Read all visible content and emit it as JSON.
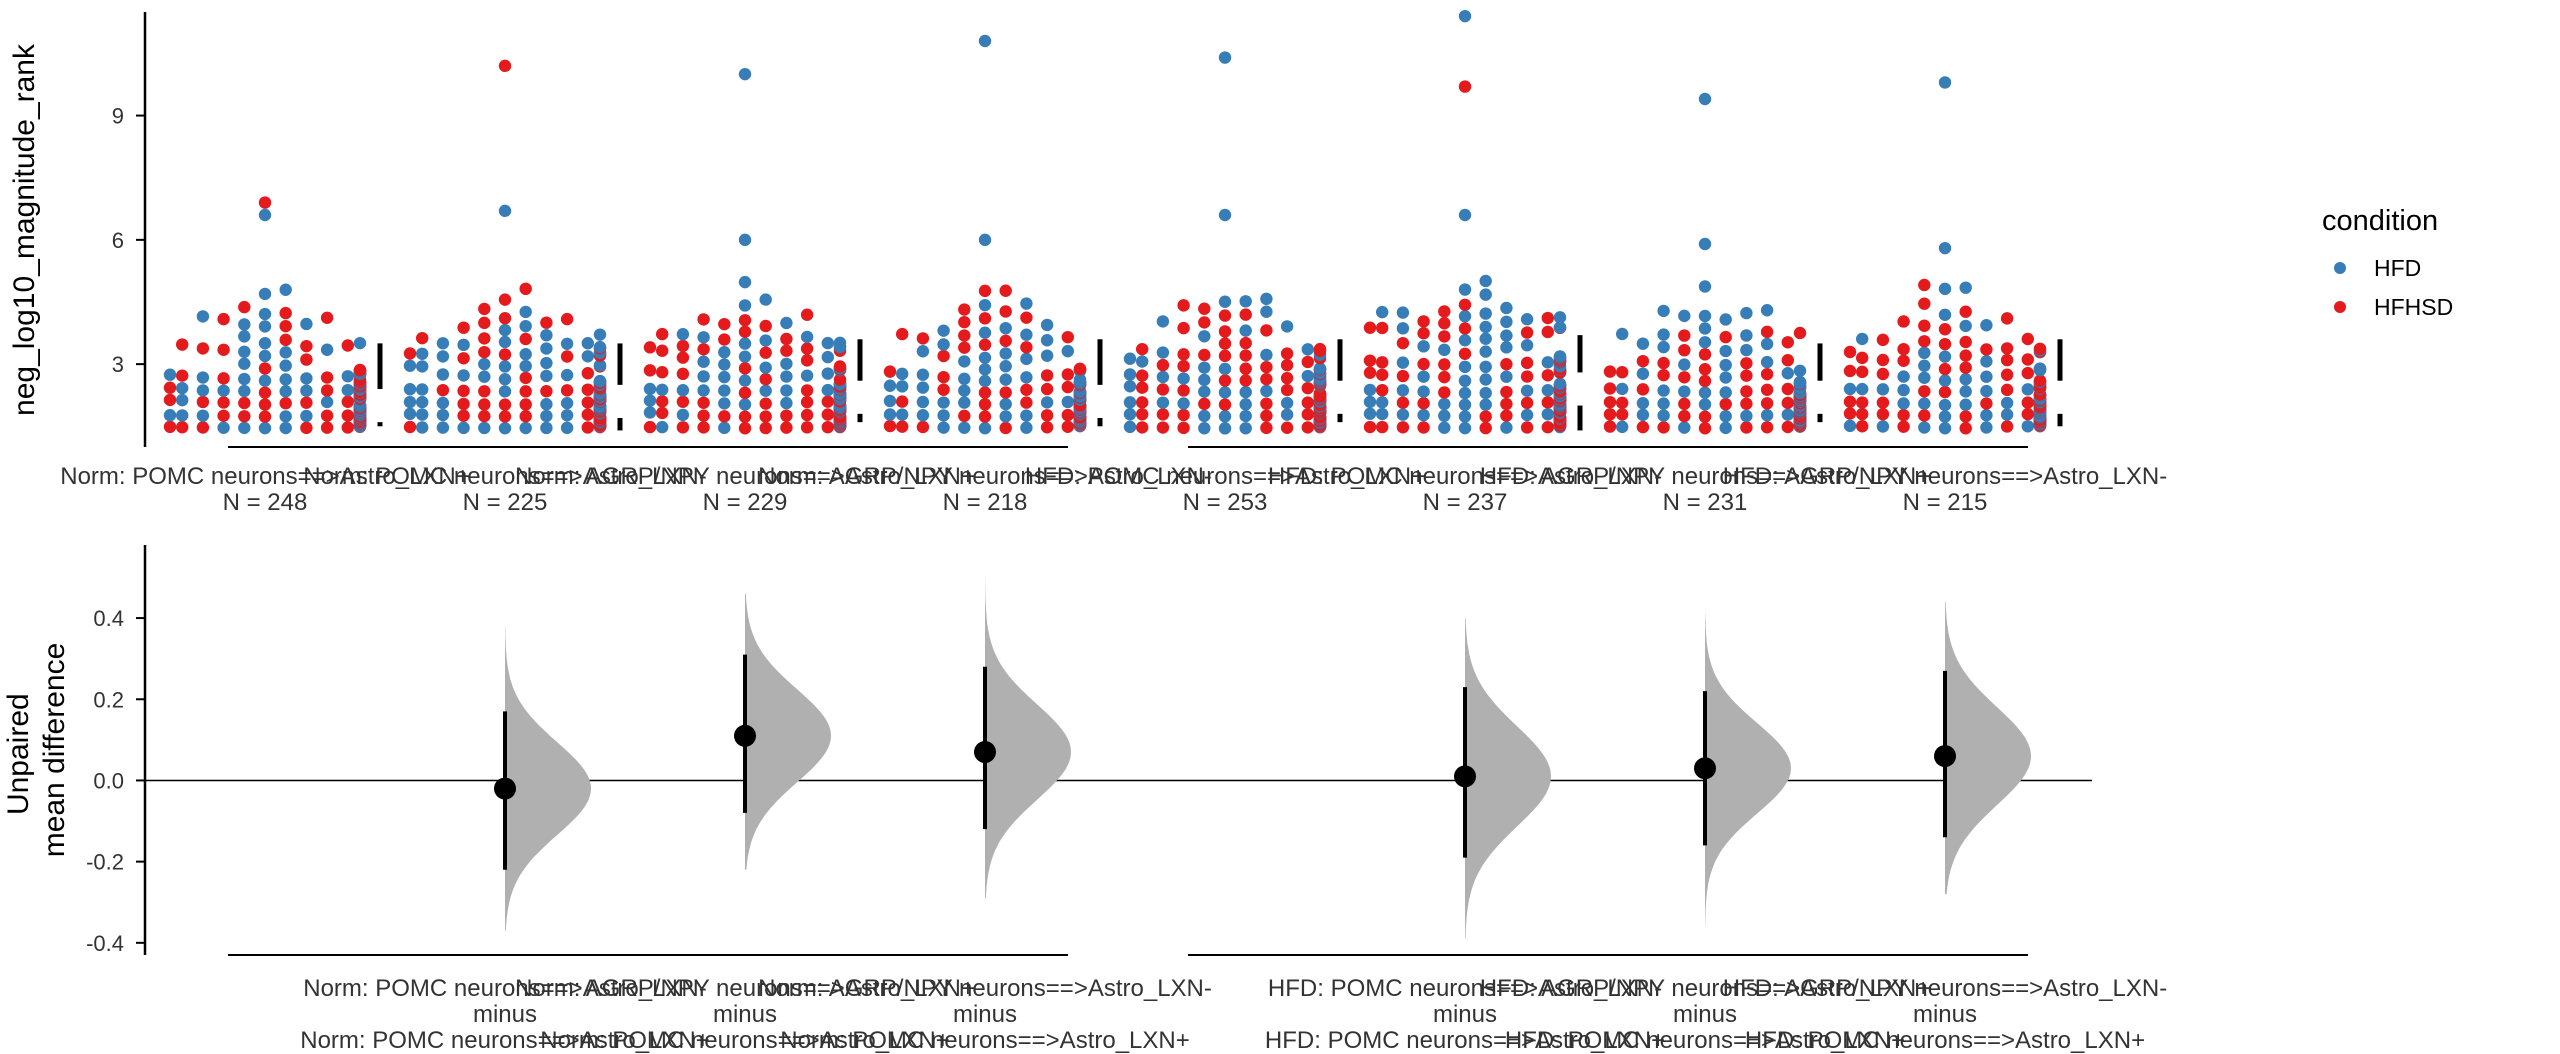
{
  "chart_data": [
    {
      "type": "scatter",
      "subtype": "swarm",
      "ylabel": "neg_log10_magnitude_rank",
      "yticks": [
        3,
        6,
        9
      ],
      "ylim": [
        1.0,
        11.5
      ],
      "legend": {
        "title": "condition",
        "position": "right",
        "entries": [
          {
            "name": "HFD",
            "color": "#377eb8"
          },
          {
            "name": "HFHSD",
            "color": "#e41a1c"
          }
        ]
      },
      "groups": [
        {
          "label": "Norm: POMC neurons==>Astro_LXN+",
          "n_text": "N = 248",
          "outliers": [
            {
              "y": 6.9,
              "condition": "HFHSD"
            },
            {
              "y": 6.6,
              "condition": "HFD"
            }
          ]
        },
        {
          "label": "Norm: POMC neurons==>Astro_LXN-",
          "n_text": "N = 225",
          "outliers": [
            {
              "y": 10.2,
              "condition": "HFHSD"
            },
            {
              "y": 6.7,
              "condition": "HFD"
            }
          ]
        },
        {
          "label": "Norm: AGRP/NPY neurons==>Astro_LXN+",
          "n_text": "N = 229",
          "outliers": [
            {
              "y": 10.0,
              "condition": "HFD"
            },
            {
              "y": 6.0,
              "condition": "HFD"
            }
          ]
        },
        {
          "label": "Norm: AGRP/NPY neurons==>Astro_LXN-",
          "n_text": "N = 218",
          "outliers": [
            {
              "y": 10.8,
              "condition": "HFD"
            },
            {
              "y": 6.0,
              "condition": "HFD"
            }
          ]
        },
        {
          "label": "HFD: POMC neurons==>Astro_LXN+",
          "n_text": "N = 253",
          "outliers": [
            {
              "y": 10.4,
              "condition": "HFD"
            },
            {
              "y": 6.6,
              "condition": "HFD"
            }
          ]
        },
        {
          "label": "HFD: POMC neurons==>Astro_LXN-",
          "n_text": "N = 237",
          "outliers": [
            {
              "y": 11.4,
              "condition": "HFD"
            },
            {
              "y": 9.7,
              "condition": "HFHSD"
            },
            {
              "y": 6.6,
              "condition": "HFD"
            }
          ]
        },
        {
          "label": "HFD: AGRP/NPY neurons==>Astro_LXN+",
          "n_text": "N = 231",
          "outliers": [
            {
              "y": 9.4,
              "condition": "HFD"
            },
            {
              "y": 5.9,
              "condition": "HFD"
            }
          ]
        },
        {
          "label": "HFD: AGRP/NPY neurons==>Astro_LXN-",
          "n_text": "N = 215",
          "outliers": [
            {
              "y": 9.8,
              "condition": "HFD"
            },
            {
              "y": 5.8,
              "condition": "HFD"
            }
          ]
        }
      ],
      "gap_bars": [
        {
          "gap": [
            1.6,
            2.4
          ],
          "bar_top": 3.5,
          "bar_bottom": 1.5
        },
        {
          "gap": [
            1.7,
            2.5
          ],
          "bar_top": 3.5,
          "bar_bottom": 1.4
        },
        {
          "gap": [
            1.8,
            2.6
          ],
          "bar_top": 3.6,
          "bar_bottom": 1.6
        },
        {
          "gap": [
            1.7,
            2.5
          ],
          "bar_top": 3.6,
          "bar_bottom": 1.5
        },
        {
          "gap": [
            1.8,
            2.6
          ],
          "bar_top": 3.6,
          "bar_bottom": 1.6
        },
        {
          "gap": [
            2.0,
            2.8
          ],
          "bar_top": 3.7,
          "bar_bottom": 1.4
        },
        {
          "gap": [
            1.8,
            2.6
          ],
          "bar_top": 3.5,
          "bar_bottom": 1.6
        },
        {
          "gap": [
            1.8,
            2.6
          ],
          "bar_top": 3.6,
          "bar_bottom": 1.5
        }
      ]
    },
    {
      "type": "estimation",
      "ylabel": "Unpaired\nmean difference",
      "yticks": [
        -0.4,
        -0.2,
        0.0,
        0.2,
        0.4
      ],
      "ylim": [
        -0.43,
        0.58
      ],
      "zero_line": true,
      "comparisons": [
        {
          "test": "Norm: POMC neurons==>Astro_LXN-",
          "control": "Norm: POMC neurons==>Astro_LXN+",
          "mean_diff": -0.02,
          "ci": [
            -0.22,
            0.17
          ],
          "dist_min": -0.37,
          "dist_max": 0.38,
          "x_slot": 1
        },
        {
          "test": "Norm: AGRP/NPY neurons==>Astro_LXN+",
          "control": "Norm: POMC neurons==>Astro_LXN+",
          "mean_diff": 0.11,
          "ci": [
            -0.08,
            0.31
          ],
          "dist_min": -0.22,
          "dist_max": 0.46,
          "x_slot": 2
        },
        {
          "test": "Norm: AGRP/NPY neurons==>Astro_LXN-",
          "control": "Norm: POMC neurons==>Astro_LXN+",
          "mean_diff": 0.07,
          "ci": [
            -0.12,
            0.28
          ],
          "dist_min": -0.29,
          "dist_max": 0.5,
          "x_slot": 3
        },
        {
          "test": "HFD: POMC neurons==>Astro_LXN-",
          "control": "HFD: POMC neurons==>Astro_LXN+",
          "mean_diff": 0.01,
          "ci": [
            -0.19,
            0.23
          ],
          "dist_min": -0.39,
          "dist_max": 0.4,
          "x_slot": 5
        },
        {
          "test": "HFD: AGRP/NPY neurons==>Astro_LXN+",
          "control": "HFD: POMC neurons==>Astro_LXN+",
          "mean_diff": 0.03,
          "ci": [
            -0.16,
            0.22
          ],
          "dist_min": -0.36,
          "dist_max": 0.41,
          "x_slot": 6
        },
        {
          "test": "HFD: AGRP/NPY neurons==>Astro_LXN-",
          "control": "HFD: POMC neurons==>Astro_LXN+",
          "mean_diff": 0.06,
          "ci": [
            -0.14,
            0.27
          ],
          "dist_min": -0.28,
          "dist_max": 0.44,
          "x_slot": 7
        }
      ],
      "minus_text": "minus"
    }
  ]
}
